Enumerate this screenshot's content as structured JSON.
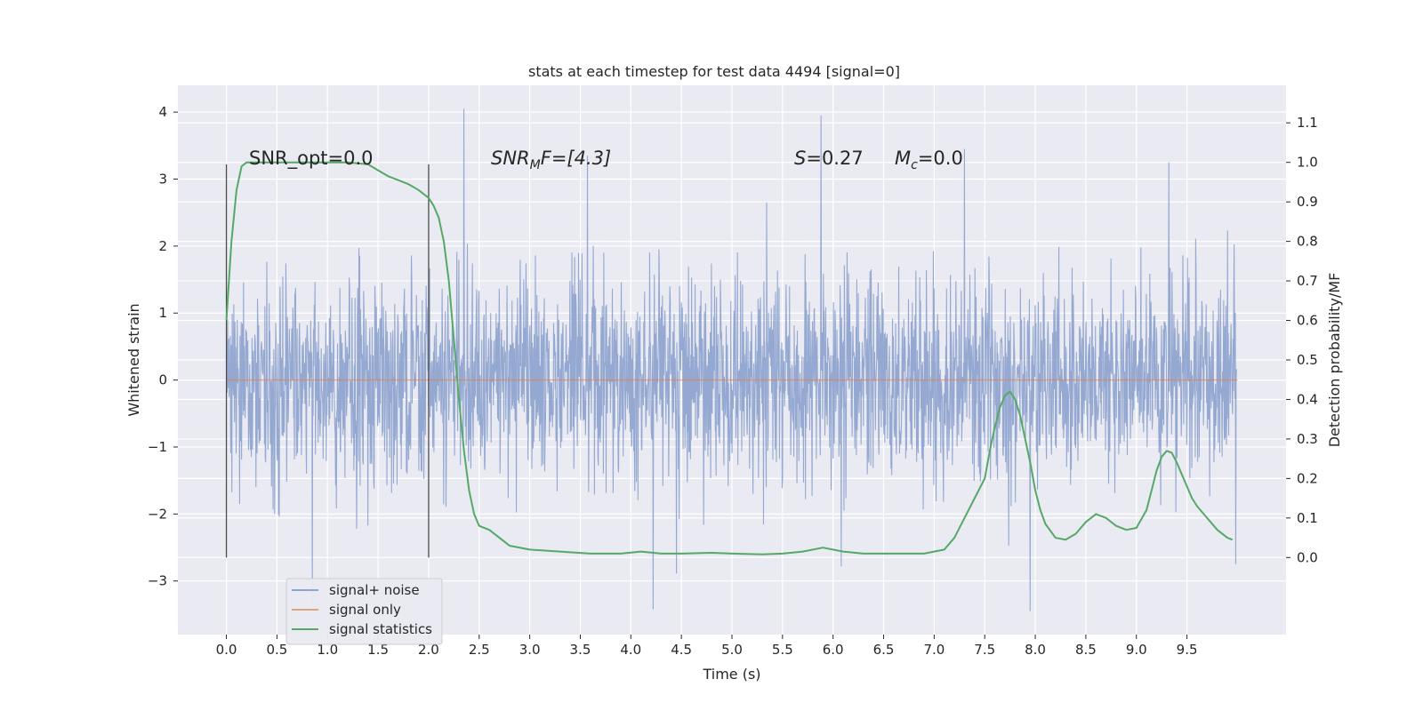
{
  "chart_data": {
    "type": "line",
    "title": "stats at each timestep for test data 4494 [signal=0]",
    "xlabel": "Time (s)",
    "ylabel": "Whitened strain",
    "y2label": "Detection probability/MF",
    "xlim": [
      -0.48,
      10.48
    ],
    "ylim": [
      -3.8,
      4.4
    ],
    "y2lim": [
      -0.195,
      1.195
    ],
    "xticks": [
      0.0,
      0.5,
      1.0,
      1.5,
      2.0,
      2.5,
      3.0,
      3.5,
      4.0,
      4.5,
      5.0,
      5.5,
      6.0,
      6.5,
      7.0,
      7.5,
      8.0,
      8.5,
      9.0,
      9.5
    ],
    "yticks": [
      -3,
      -2,
      -1,
      0,
      1,
      2,
      3,
      4
    ],
    "y2ticks": [
      0.0,
      0.1,
      0.2,
      0.3,
      0.4,
      0.5,
      0.6,
      0.7,
      0.8,
      0.9,
      1.0,
      1.1
    ],
    "grid": true,
    "legend_position": "lower-left",
    "annotations": {
      "snr_opt": "SNR_opt=0.0",
      "snr_mf_prefix": "SNR",
      "snr_mf_sub": "M",
      "snr_mf_suffix": "F=[4.3]",
      "s_symbol": "S",
      "s_value": "=0.27",
      "mc_symbol": "M",
      "mc_sub": "c",
      "mc_value": "=0.0"
    },
    "vlines": [
      0.0,
      2.0
    ],
    "series": [
      {
        "name": "signal+ noise",
        "color": "#8fa4cf",
        "axis": "left",
        "x_range": [
          0.0,
          9.99
        ],
        "noise_std": 0.75,
        "peaks": [
          [
            2.35,
            4.05
          ],
          [
            5.88,
            3.95
          ],
          [
            9.32,
            3.25
          ],
          [
            3.57,
            3.35
          ],
          [
            7.3,
            3.45
          ],
          [
            0.85,
            -3.3
          ],
          [
            7.95,
            -3.45
          ],
          [
            4.22,
            -3.42
          ]
        ]
      },
      {
        "name": "signal only",
        "color": "#dd8452",
        "axis": "left",
        "x": [
          0.0,
          10.0
        ],
        "values": [
          0.0,
          0.0
        ]
      },
      {
        "name": "signal statistics",
        "color": "#55a868",
        "axis": "right",
        "x": [
          0.0,
          0.05,
          0.1,
          0.15,
          0.2,
          0.3,
          0.5,
          0.8,
          1.0,
          1.2,
          1.4,
          1.5,
          1.6,
          1.7,
          1.8,
          1.9,
          2.0,
          2.05,
          2.1,
          2.15,
          2.2,
          2.25,
          2.3,
          2.35,
          2.4,
          2.45,
          2.5,
          2.55,
          2.6,
          2.7,
          2.8,
          3.0,
          3.3,
          3.6,
          3.9,
          4.1,
          4.3,
          4.5,
          4.8,
          5.0,
          5.3,
          5.5,
          5.7,
          5.9,
          6.1,
          6.3,
          6.6,
          6.9,
          7.1,
          7.2,
          7.3,
          7.4,
          7.5,
          7.55,
          7.6,
          7.65,
          7.7,
          7.75,
          7.8,
          7.85,
          7.9,
          7.95,
          8.0,
          8.05,
          8.1,
          8.2,
          8.3,
          8.4,
          8.5,
          8.6,
          8.7,
          8.8,
          8.9,
          9.0,
          9.1,
          9.15,
          9.2,
          9.25,
          9.3,
          9.35,
          9.4,
          9.45,
          9.5,
          9.55,
          9.6,
          9.7,
          9.8,
          9.9,
          9.95
        ],
        "values": [
          0.6,
          0.8,
          0.93,
          0.99,
          1.0,
          1.0,
          1.0,
          1.0,
          1.0,
          1.0,
          0.995,
          0.98,
          0.965,
          0.955,
          0.945,
          0.93,
          0.91,
          0.89,
          0.86,
          0.8,
          0.7,
          0.55,
          0.4,
          0.27,
          0.17,
          0.11,
          0.08,
          0.075,
          0.07,
          0.05,
          0.03,
          0.02,
          0.015,
          0.01,
          0.01,
          0.015,
          0.01,
          0.01,
          0.012,
          0.01,
          0.008,
          0.01,
          0.015,
          0.025,
          0.015,
          0.01,
          0.01,
          0.01,
          0.02,
          0.05,
          0.1,
          0.15,
          0.2,
          0.27,
          0.33,
          0.38,
          0.41,
          0.42,
          0.4,
          0.36,
          0.3,
          0.24,
          0.17,
          0.12,
          0.085,
          0.05,
          0.045,
          0.06,
          0.09,
          0.11,
          0.1,
          0.08,
          0.07,
          0.075,
          0.12,
          0.17,
          0.22,
          0.255,
          0.27,
          0.265,
          0.24,
          0.21,
          0.18,
          0.15,
          0.13,
          0.1,
          0.07,
          0.05,
          0.045
        ]
      }
    ]
  }
}
